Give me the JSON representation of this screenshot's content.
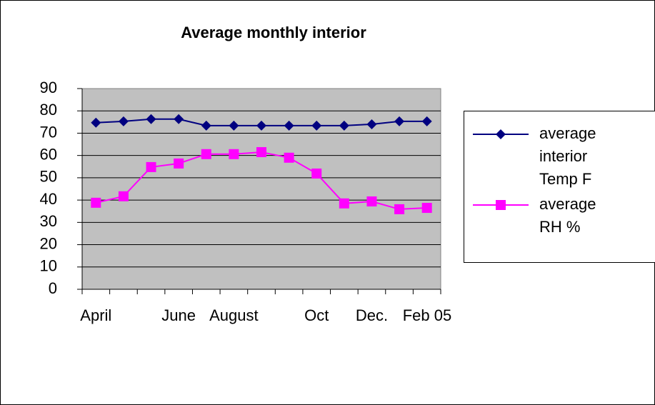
{
  "chart_data": {
    "type": "line",
    "title": "Average monthly interior",
    "categories": [
      "April",
      null,
      null,
      "June",
      null,
      "August",
      null,
      null,
      "Oct",
      null,
      "Dec.",
      null,
      "Feb 05"
    ],
    "series": [
      {
        "name": "average interior Temp F",
        "color": "#000080",
        "marker": "diamond",
        "values": [
          74.7,
          75.3,
          76.3,
          76.3,
          73.4,
          73.4,
          73.4,
          73.4,
          73.4,
          73.4,
          74.0,
          75.3,
          75.3
        ]
      },
      {
        "name": "average RH %",
        "color": "#ff00ff",
        "marker": "square",
        "values": [
          38.8,
          41.7,
          54.8,
          56.4,
          60.6,
          60.6,
          61.5,
          59.0,
          51.9,
          38.5,
          39.4,
          35.9,
          36.5
        ]
      }
    ],
    "ylim": [
      0,
      90
    ],
    "yticks": [
      0,
      10,
      20,
      30,
      40,
      50,
      60,
      70,
      80,
      90
    ],
    "grid": true,
    "legend": "right"
  }
}
